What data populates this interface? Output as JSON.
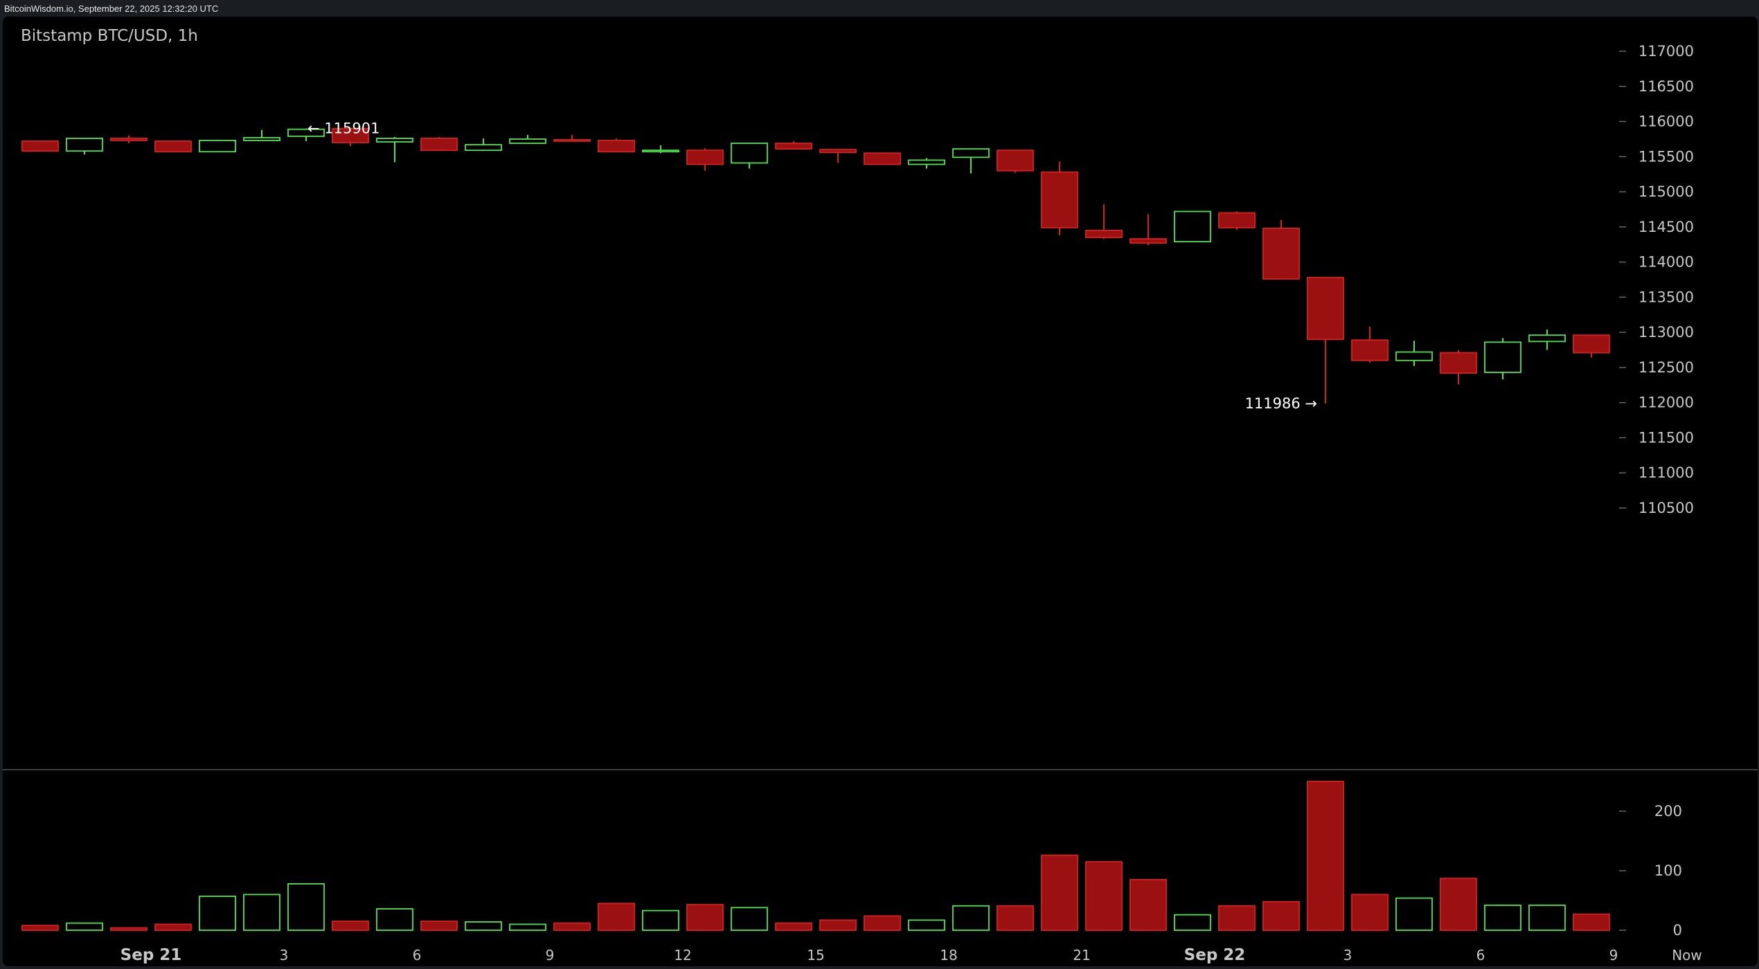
{
  "header": {
    "text": "BitcoinWisdom.io, September 22, 2025 12:32:20 UTC"
  },
  "chart_data": {
    "type": "candlestick",
    "title": "Bitstamp BTC/USD, 1h",
    "price_axis": {
      "ticks": [
        110500,
        111000,
        111500,
        112000,
        112500,
        113000,
        113500,
        114000,
        114500,
        115000,
        115500,
        116000,
        116500,
        117000
      ]
    },
    "volume_axis": {
      "ticks": [
        0,
        100,
        200
      ]
    },
    "x_ticks": [
      {
        "i": 3,
        "label": "Sep 21",
        "major": true
      },
      {
        "i": 6,
        "label": "3"
      },
      {
        "i": 9,
        "label": "6"
      },
      {
        "i": 12,
        "label": "9"
      },
      {
        "i": 15,
        "label": "12"
      },
      {
        "i": 18,
        "label": "15"
      },
      {
        "i": 21,
        "label": "18"
      },
      {
        "i": 24,
        "label": "21"
      },
      {
        "i": 27,
        "label": "Sep 22",
        "major": true
      },
      {
        "i": 30,
        "label": "3"
      },
      {
        "i": 33,
        "label": "6"
      },
      {
        "i": 36,
        "label": "9"
      },
      {
        "i": 37,
        "label": "Now"
      }
    ],
    "annotations": [
      {
        "i": 6,
        "price": 115901,
        "label": "← 115901"
      },
      {
        "i": 29,
        "price": 111986,
        "label": "111986 →"
      }
    ],
    "candles": [
      {
        "o": 115720,
        "h": 115730,
        "l": 115580,
        "c": 115580,
        "v": 8
      },
      {
        "o": 115580,
        "h": 115760,
        "l": 115530,
        "c": 115760,
        "v": 12
      },
      {
        "o": 115760,
        "h": 115800,
        "l": 115690,
        "c": 115730,
        "v": 4
      },
      {
        "o": 115720,
        "h": 115730,
        "l": 115560,
        "c": 115570,
        "v": 10
      },
      {
        "o": 115570,
        "h": 115740,
        "l": 115570,
        "c": 115730,
        "v": 57
      },
      {
        "o": 115730,
        "h": 115880,
        "l": 115730,
        "c": 115770,
        "v": 60
      },
      {
        "o": 115790,
        "h": 115901,
        "l": 115720,
        "c": 115890,
        "v": 78
      },
      {
        "o": 115900,
        "h": 115900,
        "l": 115650,
        "c": 115700,
        "v": 15
      },
      {
        "o": 115710,
        "h": 115780,
        "l": 115420,
        "c": 115760,
        "v": 36
      },
      {
        "o": 115760,
        "h": 115780,
        "l": 115580,
        "c": 115590,
        "v": 15
      },
      {
        "o": 115590,
        "h": 115760,
        "l": 115580,
        "c": 115670,
        "v": 14
      },
      {
        "o": 115690,
        "h": 115810,
        "l": 115690,
        "c": 115750,
        "v": 10
      },
      {
        "o": 115740,
        "h": 115810,
        "l": 115720,
        "c": 115730,
        "v": 12
      },
      {
        "o": 115730,
        "h": 115760,
        "l": 115560,
        "c": 115570,
        "v": 45
      },
      {
        "o": 115570,
        "h": 115660,
        "l": 115550,
        "c": 115590,
        "v": 33
      },
      {
        "o": 115590,
        "h": 115620,
        "l": 115300,
        "c": 115390,
        "v": 43
      },
      {
        "o": 115410,
        "h": 115690,
        "l": 115330,
        "c": 115690,
        "v": 38
      },
      {
        "o": 115690,
        "h": 115720,
        "l": 115600,
        "c": 115610,
        "v": 12
      },
      {
        "o": 115600,
        "h": 115610,
        "l": 115410,
        "c": 115560,
        "v": 17
      },
      {
        "o": 115550,
        "h": 115560,
        "l": 115390,
        "c": 115390,
        "v": 24
      },
      {
        "o": 115390,
        "h": 115480,
        "l": 115330,
        "c": 115450,
        "v": 17
      },
      {
        "o": 115490,
        "h": 115610,
        "l": 115260,
        "c": 115610,
        "v": 41
      },
      {
        "o": 115590,
        "h": 115590,
        "l": 115270,
        "c": 115300,
        "v": 41
      },
      {
        "o": 115280,
        "h": 115430,
        "l": 114380,
        "c": 114490,
        "v": 126
      },
      {
        "o": 114450,
        "h": 114820,
        "l": 114330,
        "c": 114350,
        "v": 115
      },
      {
        "o": 114330,
        "h": 114680,
        "l": 114240,
        "c": 114270,
        "v": 85
      },
      {
        "o": 114290,
        "h": 114720,
        "l": 114290,
        "c": 114720,
        "v": 26
      },
      {
        "o": 114700,
        "h": 114720,
        "l": 114460,
        "c": 114490,
        "v": 41
      },
      {
        "o": 114480,
        "h": 114600,
        "l": 113760,
        "c": 113760,
        "v": 48
      },
      {
        "o": 113780,
        "h": 113790,
        "l": 111986,
        "c": 112900,
        "v": 250
      },
      {
        "o": 112890,
        "h": 113080,
        "l": 112570,
        "c": 112600,
        "v": 60
      },
      {
        "o": 112600,
        "h": 112880,
        "l": 112520,
        "c": 112720,
        "v": 54
      },
      {
        "o": 112710,
        "h": 112750,
        "l": 112260,
        "c": 112420,
        "v": 87
      },
      {
        "o": 112430,
        "h": 112920,
        "l": 112330,
        "c": 112860,
        "v": 42
      },
      {
        "o": 112870,
        "h": 113040,
        "l": 112750,
        "c": 112960,
        "v": 42
      },
      {
        "o": 112960,
        "h": 112960,
        "l": 112640,
        "c": 112710,
        "v": 27
      }
    ],
    "colors": {
      "up": "#4ee44e",
      "down": "#9b1111",
      "down_edge": "#d42020",
      "grid_text": "#c8c8c8"
    }
  }
}
